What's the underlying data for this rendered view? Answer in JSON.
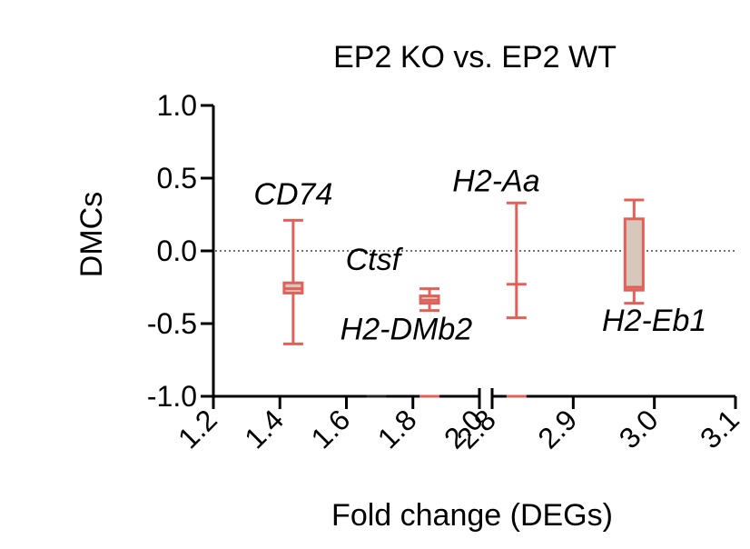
{
  "chart_data": {
    "type": "box",
    "title": "EP2 KO vs. EP2 WT",
    "xlabel": "Fold change (DEGs)",
    "ylabel": "DMCs",
    "ylim": [
      -1.0,
      1.0
    ],
    "y_ticks": [
      "-1.0",
      "-0.5",
      "0.0",
      "0.5",
      "1.0"
    ],
    "x_axis_segments": [
      {
        "range": [
          1.2,
          2.0
        ],
        "ticks": [
          "1.2",
          "1.4",
          "1.6",
          "1.8",
          "2.0"
        ]
      },
      {
        "range": [
          2.8,
          3.1
        ],
        "ticks": [
          "2.8",
          "2.9",
          "3.0",
          "3.1"
        ]
      }
    ],
    "reference_line_y": 0.0,
    "grid": false,
    "colors": {
      "box_stroke": "#e0605a",
      "box_fill": "#d8c8bc",
      "axis": "#000000",
      "dark_mark": "#222222"
    },
    "genes": [
      {
        "name": "CD74",
        "x": 1.44,
        "min": -0.64,
        "q1": -0.29,
        "median": -0.26,
        "q3": -0.22,
        "max": 0.21
      },
      {
        "name": "Ctsf",
        "x": 1.69,
        "min": -1.0,
        "q1": -1.0,
        "median": -1.0,
        "q3": -1.0,
        "max": -1.0
      },
      {
        "name": "H2-DMb2",
        "x": 1.85,
        "min": -0.41,
        "q1": -0.36,
        "median": -0.34,
        "q3": -0.31,
        "max": -0.26
      },
      {
        "name": "H2-DMb2",
        "x": 1.85,
        "min": -1.0,
        "q1": -1.0,
        "median": -1.0,
        "q3": -1.0,
        "max": -1.0
      },
      {
        "name": "H2-Aa",
        "x": 2.83,
        "min": -0.46,
        "q1": -0.23,
        "median": -0.23,
        "q3": -0.23,
        "max": 0.33
      },
      {
        "name": "H2-Aa",
        "x": 2.83,
        "min": -1.0,
        "q1": -1.0,
        "median": -1.0,
        "q3": -1.0,
        "max": -1.0
      },
      {
        "name": "H2-Eb1",
        "x": 2.975,
        "min": -0.36,
        "q1": -0.27,
        "median": -0.25,
        "q3": 0.22,
        "max": 0.35
      }
    ],
    "annotations": [
      {
        "text": "CD74",
        "x": 1.44,
        "y": 0.32
      },
      {
        "text": "Ctsf",
        "x": 1.68,
        "y": -0.13
      },
      {
        "text": "H2-DMb2",
        "x": 1.78,
        "y": -0.61
      },
      {
        "text": "H2-Aa",
        "x": 2.805,
        "y": 0.41
      },
      {
        "text": "H2-Eb1",
        "x": 3.0,
        "y": -0.55
      }
    ]
  }
}
